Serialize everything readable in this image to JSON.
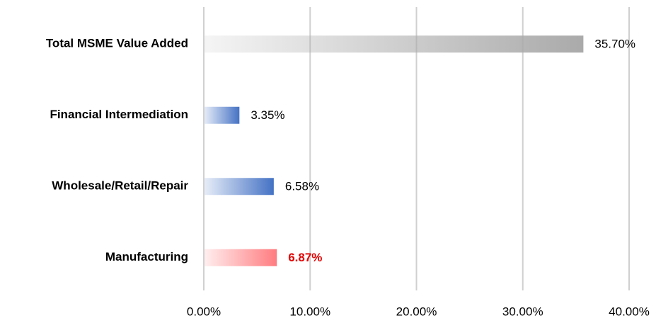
{
  "chart_data": {
    "type": "hbar",
    "categories": [
      "Total MSME Value Added",
      "Financial Intermediation",
      "Wholesale/Retail/Repair",
      "Manufacturing"
    ],
    "values": [
      35.7,
      3.35,
      6.58,
      6.87
    ],
    "value_labels": [
      "35.70%",
      "3.35%",
      "6.58%",
      "6.87%"
    ],
    "colors": [
      "#aaaaaa",
      "#4472c4",
      "#4472c4",
      "#ff7c80"
    ],
    "value_label_colors": [
      "#000000",
      "#000000",
      "#000000",
      "#e00000"
    ],
    "xlim": [
      0,
      40
    ],
    "xticks": [
      {
        "value": 0,
        "label": "0.00%"
      },
      {
        "value": 10,
        "label": "10.00%"
      },
      {
        "value": 20,
        "label": "20.00%"
      },
      {
        "value": 30,
        "label": "30.00%"
      },
      {
        "value": 40,
        "label": "40.00%"
      }
    ],
    "grid": true
  }
}
